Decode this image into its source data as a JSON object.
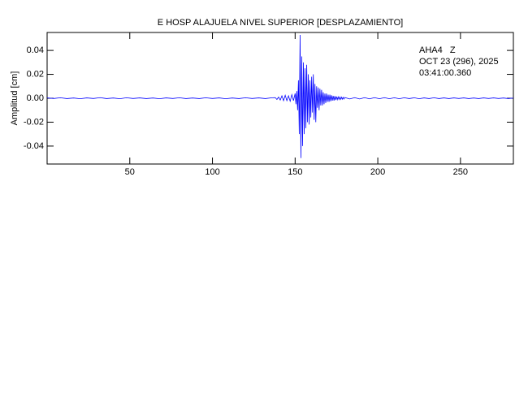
{
  "chart_data": {
    "type": "line",
    "title": "E HOSP ALAJUELA NIVEL SUPERIOR [DESPLAZAMIENTO]",
    "y_label": "Amplitud [cm]",
    "annotations": [
      "AHA4   Z",
      "OCT 23 (296), 2025",
      "03:41:00.360"
    ],
    "xlim": [
      0,
      282
    ],
    "xticks": [
      50,
      100,
      150,
      200,
      250
    ],
    "ylim": [
      -0.055,
      0.055
    ],
    "yticks": [
      0.04,
      0.02,
      {
        "value": 0,
        "label": "0.00"
      },
      -0.02,
      -0.04
    ],
    "series": [
      {
        "color": "#0000ff",
        "x": [
          0,
          4,
          8,
          12,
          16,
          20,
          24,
          28,
          32,
          36,
          40,
          44,
          48,
          52,
          56,
          60,
          64,
          68,
          72,
          76,
          80,
          84,
          88,
          92,
          96,
          100,
          104,
          108,
          112,
          116,
          120,
          124,
          128,
          132,
          136,
          138,
          139,
          140,
          141,
          142,
          143,
          144,
          145,
          146,
          147,
          148,
          149,
          150,
          150.5,
          151,
          151.5,
          152,
          152.5,
          153,
          153.5,
          154,
          154.5,
          155,
          155.5,
          156,
          156.5,
          157,
          157.5,
          158,
          158.5,
          159,
          159.5,
          160,
          160.5,
          161,
          161.5,
          162,
          162.5,
          163,
          163.5,
          164,
          164.5,
          165,
          165.5,
          166,
          166.5,
          167,
          167.5,
          168,
          168.5,
          169,
          169.5,
          170,
          170.5,
          171,
          171.5,
          172,
          172.5,
          173,
          173.5,
          174,
          174.5,
          175,
          175.5,
          176,
          176.5,
          177,
          177.5,
          178,
          178.5,
          179,
          179.5,
          180,
          183,
          186,
          189,
          192,
          195,
          198,
          201,
          204,
          207,
          210,
          213,
          216,
          219,
          222,
          225,
          228,
          231,
          234,
          237,
          240,
          243,
          246,
          249,
          252,
          255,
          258,
          261,
          264,
          267,
          270,
          273,
          276,
          279,
          282
        ],
        "values": [
          0.0003,
          -0.0002,
          0.0004,
          -0.0003,
          0.0002,
          -0.0004,
          0.0003,
          -0.0002,
          0.0005,
          -0.0003,
          0.0002,
          -0.0004,
          0.0004,
          -0.0002,
          0.0003,
          -0.0003,
          0.0002,
          -0.0004,
          0.0003,
          -0.0002,
          0.0004,
          -0.0003,
          0.0002,
          -0.0003,
          0.0004,
          -0.0002,
          0.0003,
          -0.0004,
          0.0002,
          -0.0003,
          0.0004,
          -0.0002,
          0.0003,
          -0.0003,
          0.0004,
          0.0005,
          -0.001,
          0.001,
          -0.0015,
          0.002,
          -0.002,
          0.0025,
          -0.002,
          0.002,
          -0.0025,
          0.003,
          -0.002,
          0.004,
          -0.005,
          0.006,
          -0.01,
          0.015,
          -0.03,
          0.053,
          -0.05,
          0.035,
          -0.04,
          0.03,
          -0.03,
          0.025,
          -0.025,
          0.028,
          -0.02,
          0.02,
          -0.022,
          0.015,
          -0.016,
          0.018,
          -0.012,
          0.02,
          -0.018,
          0.012,
          -0.02,
          0.01,
          -0.008,
          0.009,
          -0.01,
          0.008,
          -0.006,
          0.007,
          -0.006,
          0.005,
          -0.005,
          0.004,
          -0.004,
          0.004,
          -0.003,
          0.003,
          -0.003,
          0.003,
          -0.0025,
          0.0025,
          -0.002,
          0.002,
          -0.002,
          0.0018,
          -0.0015,
          0.0015,
          -0.0012,
          0.0012,
          -0.001,
          0.001,
          -0.001,
          0.0009,
          -0.0008,
          0.0008,
          -0.0007,
          0.0006,
          -0.0006,
          0.0005,
          -0.0006,
          0.0005,
          -0.0005,
          0.0005,
          -0.0004,
          0.0005,
          -0.0004,
          0.0004,
          -0.0004,
          0.0004,
          -0.0003,
          0.0004,
          -0.0004,
          0.0003,
          -0.0003,
          0.0004,
          -0.0003,
          0.0003,
          -0.0003,
          0.0003,
          -0.0002,
          0.0003,
          -0.0003,
          0.0002,
          -0.0003,
          0.0003,
          -0.0002,
          0.0003,
          -0.0002,
          0.0002,
          -0.0003,
          0.0002
        ]
      }
    ]
  }
}
